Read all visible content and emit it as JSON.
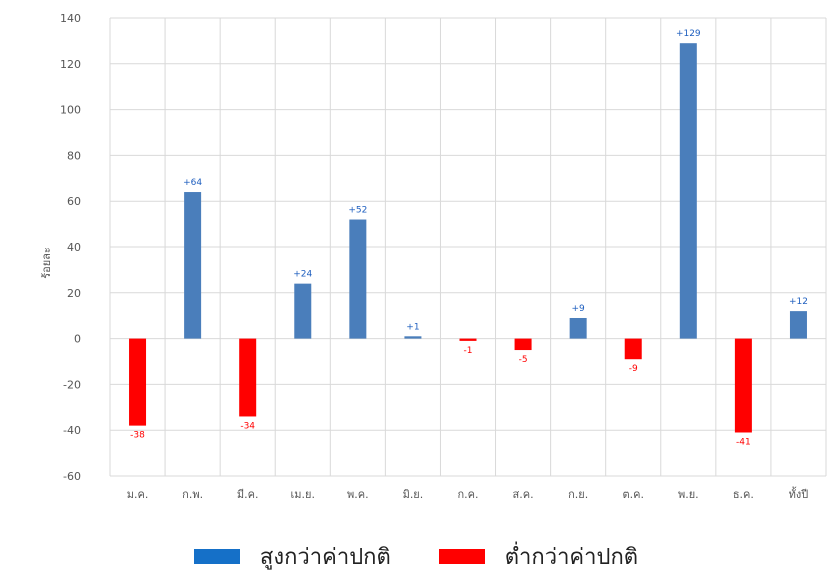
{
  "chart_data": {
    "type": "bar",
    "title": "",
    "xlabel": "",
    "ylabel": "ร้อยละ",
    "ylim": [
      -60,
      140
    ],
    "yticks": [
      140,
      120,
      100,
      80,
      60,
      40,
      20,
      0,
      -20,
      -40,
      -60
    ],
    "grid": true,
    "legend_placement": "bottom",
    "categories": [
      "ม.ค.",
      "ก.พ.",
      "มี.ค.",
      "เม.ย.",
      "พ.ค.",
      "มิ.ย.",
      "ก.ค.",
      "ส.ค.",
      "ก.ย.",
      "ต.ค.",
      "พ.ย.",
      "ธ.ค.",
      "ทั้งปี"
    ],
    "values": [
      -38,
      64,
      -34,
      24,
      52,
      1,
      -1,
      -5,
      9,
      -9,
      129,
      -41,
      12
    ],
    "data_labels": [
      "-38",
      "+64",
      "-34",
      "+24",
      "+52",
      "+1",
      "-1",
      "-5",
      "+9",
      "-9",
      "+129",
      "-41",
      "+12"
    ],
    "series": [
      {
        "name": "สูงกว่าค่าปกติ",
        "color": "#4a7ebb",
        "label_color": "#1f5fbf",
        "legend_color": "#1570c8"
      },
      {
        "name": "ต่ำกว่าค่าปกติ",
        "color": "#ff0000",
        "label_color": "#ff0000",
        "legend_color": "#ff0000"
      }
    ]
  }
}
